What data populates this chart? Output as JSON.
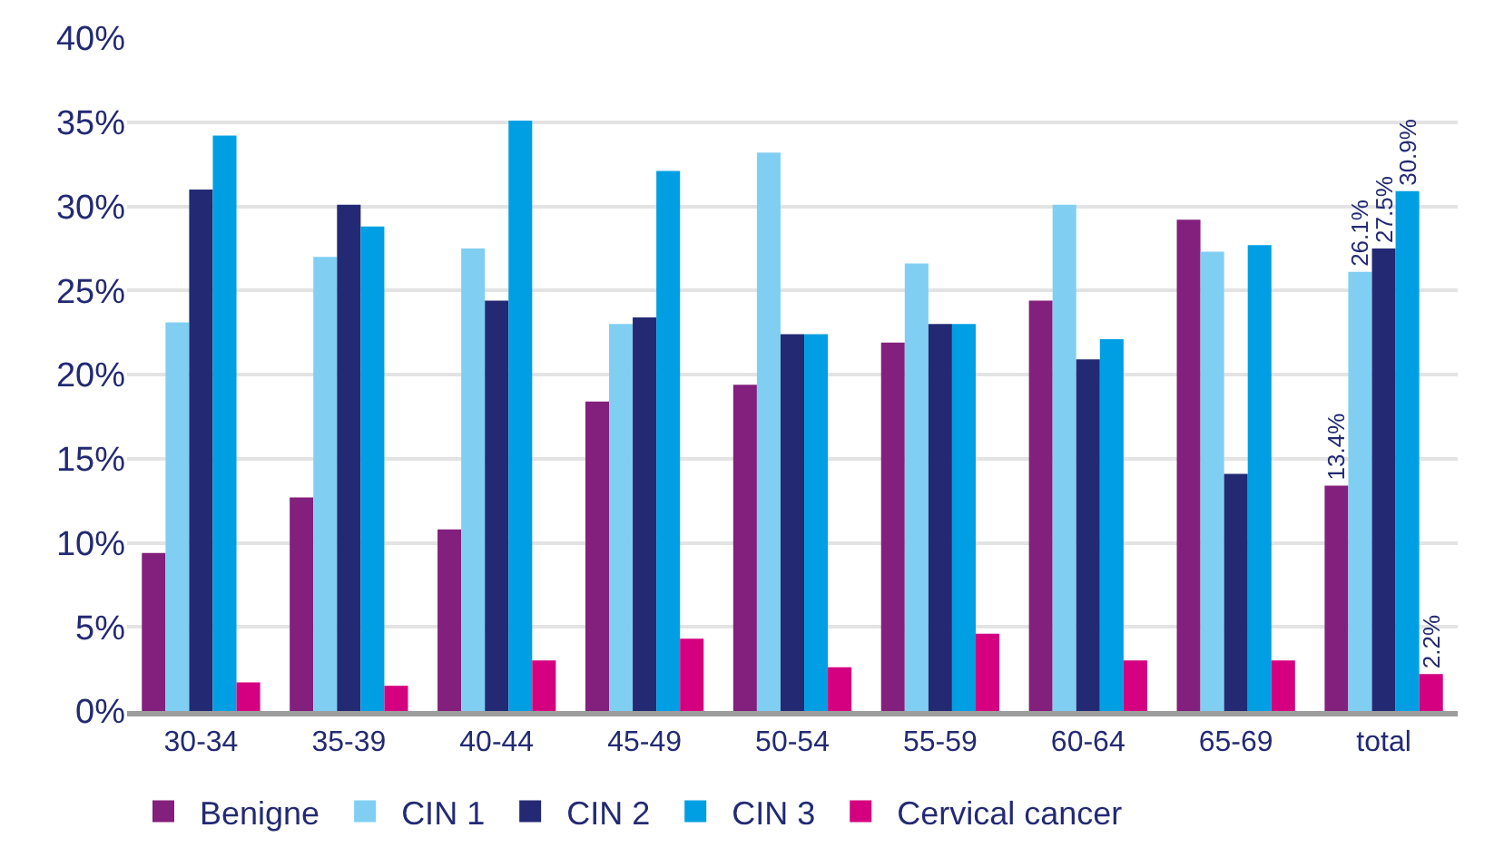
{
  "chart_data": {
    "type": "bar",
    "categories": [
      "30-34",
      "35-39",
      "40-44",
      "45-49",
      "50-54",
      "55-59",
      "60-64",
      "65-69",
      "total"
    ],
    "series": [
      {
        "name": "Benigne",
        "color": "#831f7c",
        "values": [
          9.4,
          12.7,
          10.8,
          18.4,
          19.4,
          21.9,
          24.4,
          29.2,
          13.4
        ],
        "value_labels": [
          null,
          null,
          null,
          null,
          null,
          null,
          null,
          null,
          "13.4%"
        ]
      },
      {
        "name": "CIN 1",
        "color": "#80cff3",
        "values": [
          23.1,
          27.0,
          27.5,
          23.0,
          33.2,
          26.6,
          30.1,
          27.3,
          26.1
        ],
        "value_labels": [
          null,
          null,
          null,
          null,
          null,
          null,
          null,
          null,
          "26.1%"
        ]
      },
      {
        "name": "CIN 2",
        "color": "#232a73",
        "values": [
          31.0,
          30.1,
          24.4,
          23.4,
          22.4,
          23.0,
          20.9,
          14.1,
          27.5
        ],
        "value_labels": [
          null,
          null,
          null,
          null,
          null,
          null,
          null,
          null,
          "27.5%"
        ]
      },
      {
        "name": "CIN 3",
        "color": "#009fe3",
        "values": [
          34.2,
          28.8,
          35.1,
          32.1,
          22.4,
          23.0,
          22.1,
          27.7,
          30.9
        ],
        "value_labels": [
          null,
          null,
          null,
          null,
          null,
          null,
          null,
          null,
          "30.9%"
        ]
      },
      {
        "name": "Cervical cancer",
        "color": "#d4007f",
        "values": [
          1.7,
          1.5,
          3.0,
          4.3,
          2.6,
          4.6,
          3.0,
          3.0,
          2.2
        ],
        "value_labels": [
          null,
          null,
          null,
          null,
          null,
          null,
          null,
          null,
          "2.2%"
        ]
      }
    ],
    "ylim": [
      0,
      40
    ],
    "yticks": [
      {
        "value": 0,
        "label": "0%"
      },
      {
        "value": 5,
        "label": "5%"
      },
      {
        "value": 10,
        "label": "10%"
      },
      {
        "value": 15,
        "label": "15%"
      },
      {
        "value": 20,
        "label": "20%"
      },
      {
        "value": 25,
        "label": "25%"
      },
      {
        "value": 30,
        "label": "30%"
      },
      {
        "value": 35,
        "label": "35%"
      },
      {
        "value": 40,
        "label": "40%"
      }
    ],
    "grid": "y",
    "legend": "bottom"
  }
}
